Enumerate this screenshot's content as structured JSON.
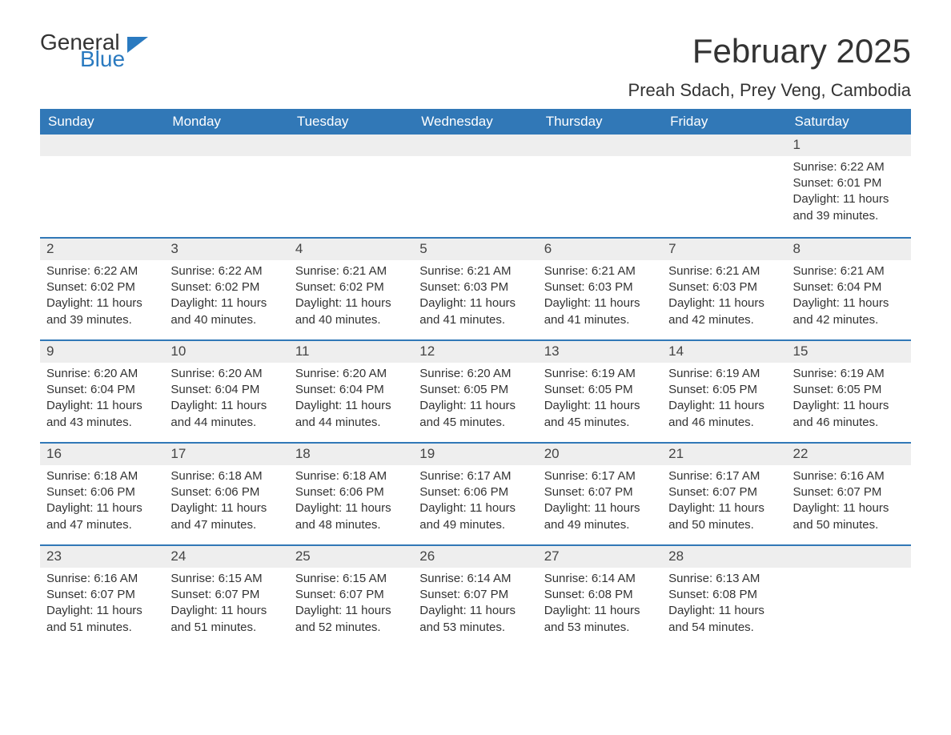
{
  "logo": {
    "word1": "General",
    "word2": "Blue"
  },
  "title": "February 2025",
  "location": "Preah Sdach, Prey Veng, Cambodia",
  "colors": {
    "header_bg": "#3178b7",
    "header_text": "#ffffff",
    "daynum_bg": "#eeeeee",
    "rule": "#3178b7",
    "text": "#333333",
    "logo_accent": "#2a7ac0"
  },
  "weekdays": [
    "Sunday",
    "Monday",
    "Tuesday",
    "Wednesday",
    "Thursday",
    "Friday",
    "Saturday"
  ],
  "weeks": [
    [
      null,
      null,
      null,
      null,
      null,
      null,
      {
        "n": "1",
        "sr": "Sunrise: 6:22 AM",
        "ss": "Sunset: 6:01 PM",
        "dl": "Daylight: 11 hours and 39 minutes."
      }
    ],
    [
      {
        "n": "2",
        "sr": "Sunrise: 6:22 AM",
        "ss": "Sunset: 6:02 PM",
        "dl": "Daylight: 11 hours and 39 minutes."
      },
      {
        "n": "3",
        "sr": "Sunrise: 6:22 AM",
        "ss": "Sunset: 6:02 PM",
        "dl": "Daylight: 11 hours and 40 minutes."
      },
      {
        "n": "4",
        "sr": "Sunrise: 6:21 AM",
        "ss": "Sunset: 6:02 PM",
        "dl": "Daylight: 11 hours and 40 minutes."
      },
      {
        "n": "5",
        "sr": "Sunrise: 6:21 AM",
        "ss": "Sunset: 6:03 PM",
        "dl": "Daylight: 11 hours and 41 minutes."
      },
      {
        "n": "6",
        "sr": "Sunrise: 6:21 AM",
        "ss": "Sunset: 6:03 PM",
        "dl": "Daylight: 11 hours and 41 minutes."
      },
      {
        "n": "7",
        "sr": "Sunrise: 6:21 AM",
        "ss": "Sunset: 6:03 PM",
        "dl": "Daylight: 11 hours and 42 minutes."
      },
      {
        "n": "8",
        "sr": "Sunrise: 6:21 AM",
        "ss": "Sunset: 6:04 PM",
        "dl": "Daylight: 11 hours and 42 minutes."
      }
    ],
    [
      {
        "n": "9",
        "sr": "Sunrise: 6:20 AM",
        "ss": "Sunset: 6:04 PM",
        "dl": "Daylight: 11 hours and 43 minutes."
      },
      {
        "n": "10",
        "sr": "Sunrise: 6:20 AM",
        "ss": "Sunset: 6:04 PM",
        "dl": "Daylight: 11 hours and 44 minutes."
      },
      {
        "n": "11",
        "sr": "Sunrise: 6:20 AM",
        "ss": "Sunset: 6:04 PM",
        "dl": "Daylight: 11 hours and 44 minutes."
      },
      {
        "n": "12",
        "sr": "Sunrise: 6:20 AM",
        "ss": "Sunset: 6:05 PM",
        "dl": "Daylight: 11 hours and 45 minutes."
      },
      {
        "n": "13",
        "sr": "Sunrise: 6:19 AM",
        "ss": "Sunset: 6:05 PM",
        "dl": "Daylight: 11 hours and 45 minutes."
      },
      {
        "n": "14",
        "sr": "Sunrise: 6:19 AM",
        "ss": "Sunset: 6:05 PM",
        "dl": "Daylight: 11 hours and 46 minutes."
      },
      {
        "n": "15",
        "sr": "Sunrise: 6:19 AM",
        "ss": "Sunset: 6:05 PM",
        "dl": "Daylight: 11 hours and 46 minutes."
      }
    ],
    [
      {
        "n": "16",
        "sr": "Sunrise: 6:18 AM",
        "ss": "Sunset: 6:06 PM",
        "dl": "Daylight: 11 hours and 47 minutes."
      },
      {
        "n": "17",
        "sr": "Sunrise: 6:18 AM",
        "ss": "Sunset: 6:06 PM",
        "dl": "Daylight: 11 hours and 47 minutes."
      },
      {
        "n": "18",
        "sr": "Sunrise: 6:18 AM",
        "ss": "Sunset: 6:06 PM",
        "dl": "Daylight: 11 hours and 48 minutes."
      },
      {
        "n": "19",
        "sr": "Sunrise: 6:17 AM",
        "ss": "Sunset: 6:06 PM",
        "dl": "Daylight: 11 hours and 49 minutes."
      },
      {
        "n": "20",
        "sr": "Sunrise: 6:17 AM",
        "ss": "Sunset: 6:07 PM",
        "dl": "Daylight: 11 hours and 49 minutes."
      },
      {
        "n": "21",
        "sr": "Sunrise: 6:17 AM",
        "ss": "Sunset: 6:07 PM",
        "dl": "Daylight: 11 hours and 50 minutes."
      },
      {
        "n": "22",
        "sr": "Sunrise: 6:16 AM",
        "ss": "Sunset: 6:07 PM",
        "dl": "Daylight: 11 hours and 50 minutes."
      }
    ],
    [
      {
        "n": "23",
        "sr": "Sunrise: 6:16 AM",
        "ss": "Sunset: 6:07 PM",
        "dl": "Daylight: 11 hours and 51 minutes."
      },
      {
        "n": "24",
        "sr": "Sunrise: 6:15 AM",
        "ss": "Sunset: 6:07 PM",
        "dl": "Daylight: 11 hours and 51 minutes."
      },
      {
        "n": "25",
        "sr": "Sunrise: 6:15 AM",
        "ss": "Sunset: 6:07 PM",
        "dl": "Daylight: 11 hours and 52 minutes."
      },
      {
        "n": "26",
        "sr": "Sunrise: 6:14 AM",
        "ss": "Sunset: 6:07 PM",
        "dl": "Daylight: 11 hours and 53 minutes."
      },
      {
        "n": "27",
        "sr": "Sunrise: 6:14 AM",
        "ss": "Sunset: 6:08 PM",
        "dl": "Daylight: 11 hours and 53 minutes."
      },
      {
        "n": "28",
        "sr": "Sunrise: 6:13 AM",
        "ss": "Sunset: 6:08 PM",
        "dl": "Daylight: 11 hours and 54 minutes."
      },
      null
    ]
  ]
}
